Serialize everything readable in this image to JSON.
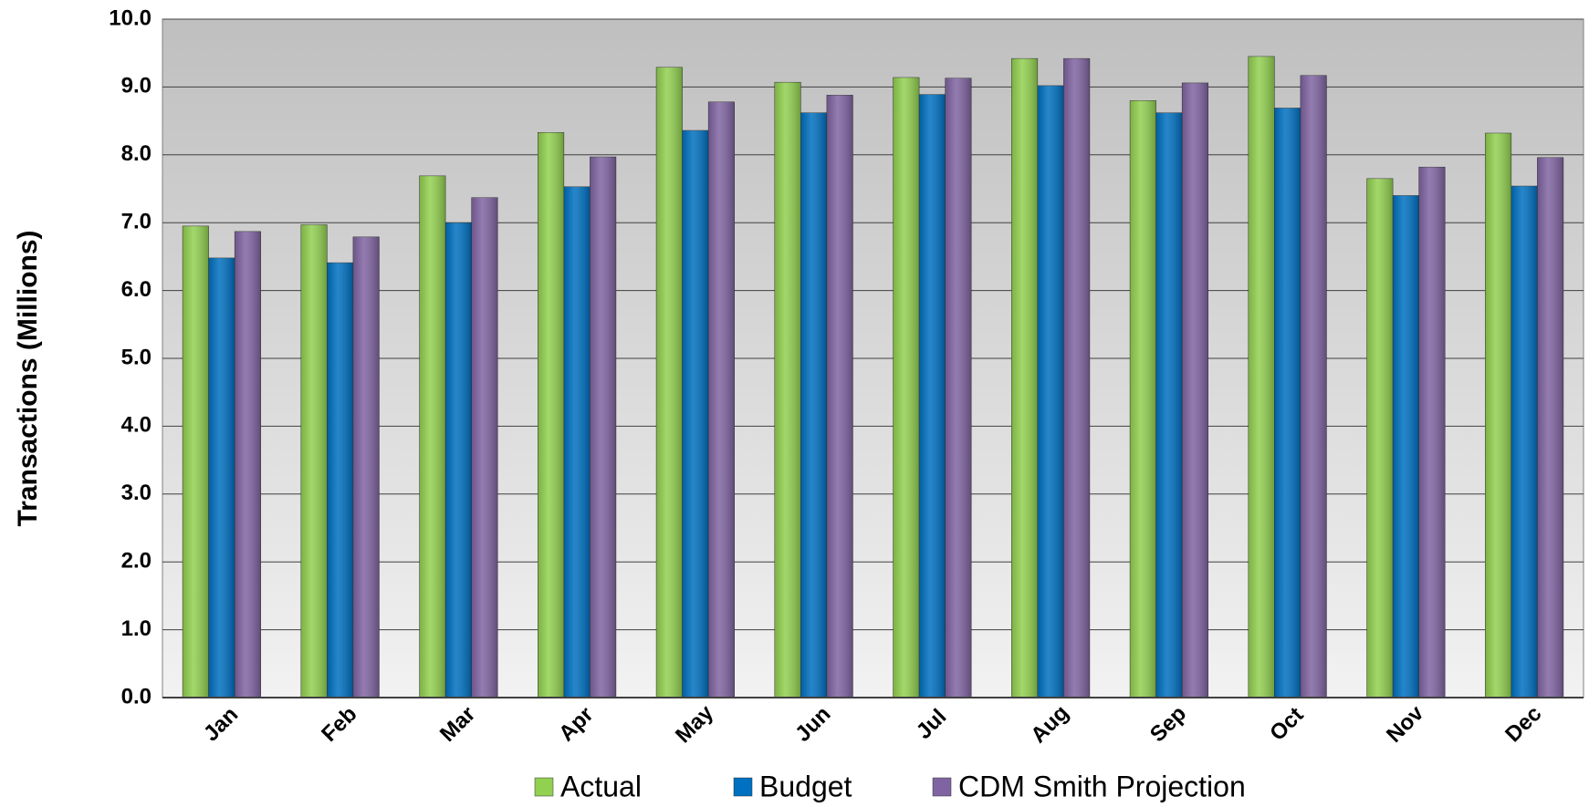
{
  "chart_data": {
    "type": "bar",
    "y_label": "Transactions (Millions)",
    "categories": [
      "Jan",
      "Feb",
      "Mar",
      "Apr",
      "May",
      "Jun",
      "Jul",
      "Aug",
      "Sep",
      "Oct",
      "Nov",
      "Dec"
    ],
    "series": [
      {
        "name": "Actual",
        "color": "#92d050",
        "values": [
          6.95,
          6.97,
          7.69,
          8.33,
          9.29,
          9.07,
          9.14,
          9.42,
          8.8,
          9.45,
          7.65,
          8.32
        ]
      },
      {
        "name": "Budget",
        "color": "#0070c0",
        "values": [
          6.48,
          6.41,
          7.0,
          7.53,
          8.36,
          8.62,
          8.89,
          9.02,
          8.62,
          8.69,
          7.4,
          7.54
        ]
      },
      {
        "name": "CDM Smith Projection",
        "color": "#8064a2",
        "values": [
          6.87,
          6.79,
          7.37,
          7.97,
          8.78,
          8.88,
          9.13,
          9.42,
          9.06,
          9.17,
          7.82,
          7.96
        ]
      }
    ],
    "ylim": [
      0,
      10
    ],
    "yticks": [
      {
        "value": 0,
        "label": "0.0"
      },
      {
        "value": 1,
        "label": "1.0"
      },
      {
        "value": 2,
        "label": "2.0"
      },
      {
        "value": 3,
        "label": "3.0"
      },
      {
        "value": 4,
        "label": "4.0"
      },
      {
        "value": 5,
        "label": "5.0"
      },
      {
        "value": 6,
        "label": "6.0"
      },
      {
        "value": 7,
        "label": "7.0"
      },
      {
        "value": 8,
        "label": "8.0"
      },
      {
        "value": 9,
        "label": "9.0"
      },
      {
        "value": 10,
        "label": "10.0"
      }
    ],
    "grid": true,
    "legend": "bottom"
  }
}
